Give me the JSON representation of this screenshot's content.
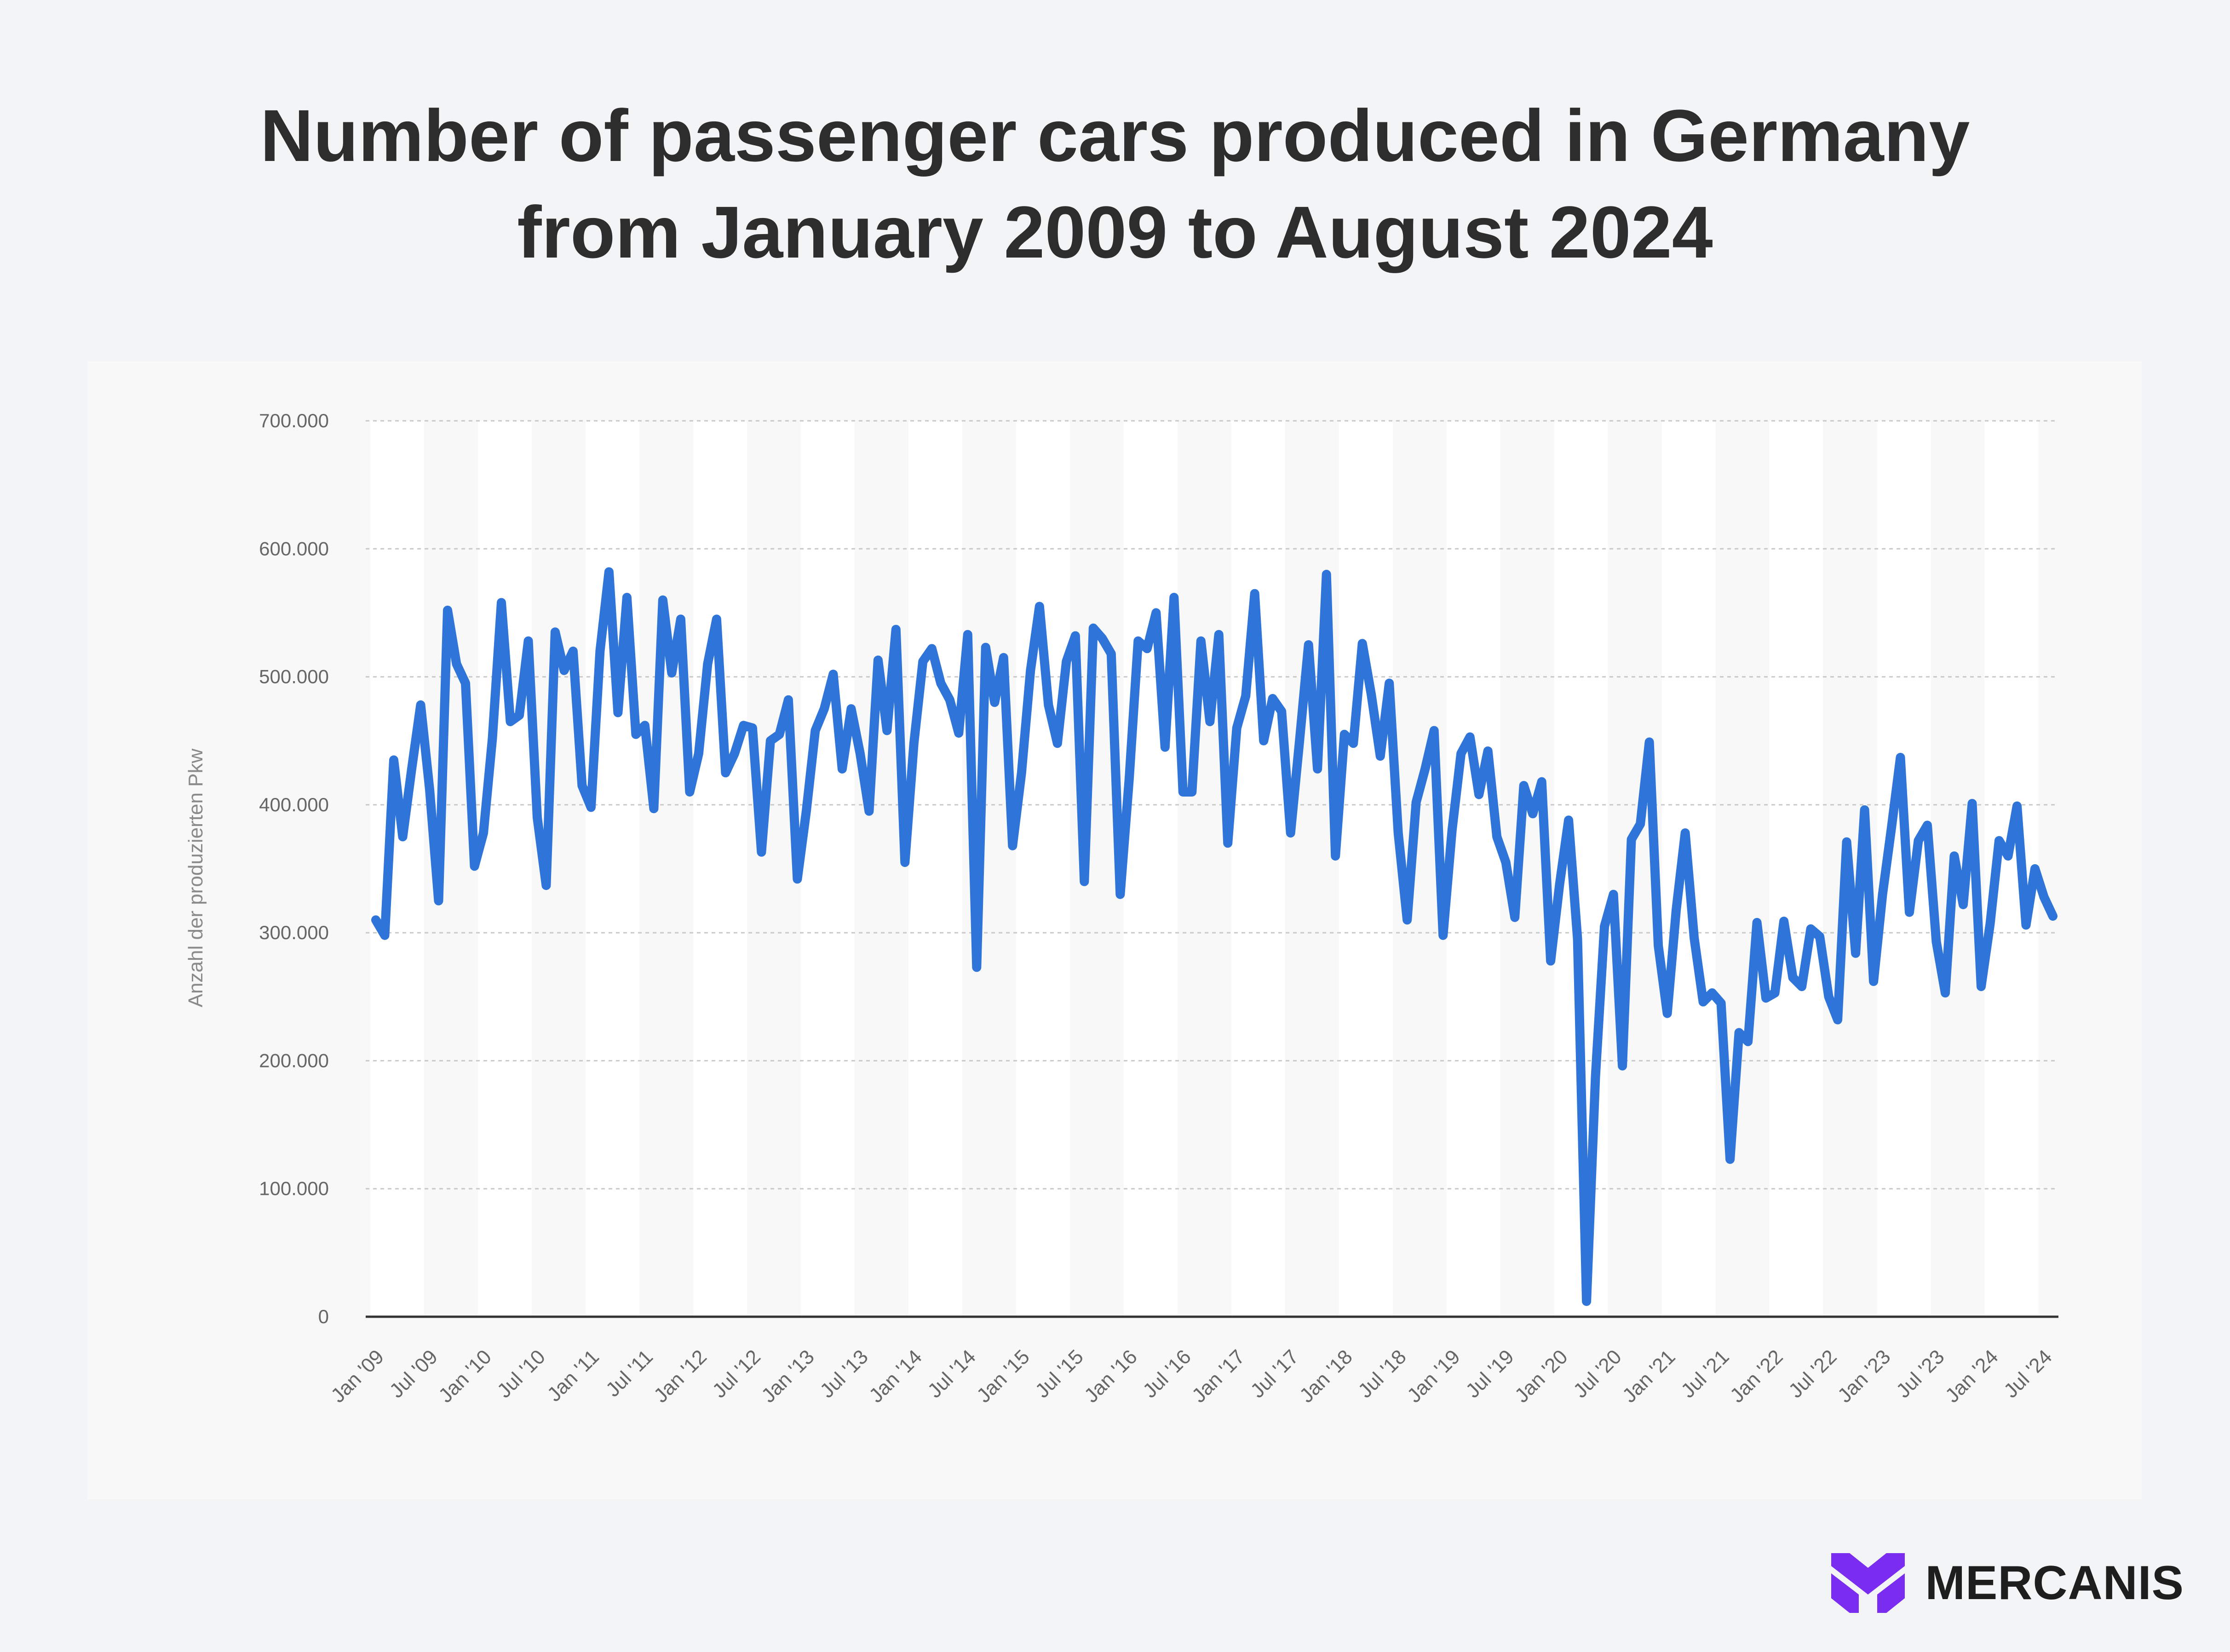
{
  "chart_data": {
    "type": "line",
    "title_lines": [
      "Number of passenger cars produced in Germany",
      "from January 2009 to August 2024"
    ],
    "ylabel": "Anzahl der produzierten Pkw",
    "xlabel": "",
    "ylim": [
      0,
      700000
    ],
    "y_ticks": [
      0,
      100000,
      200000,
      300000,
      400000,
      500000,
      600000,
      700000
    ],
    "y_tick_labels": [
      "0",
      "100.000",
      "200.000",
      "300.000",
      "400.000",
      "500.000",
      "600.000",
      "700.000"
    ],
    "x_tick_labels": [
      "Jan '09",
      "Jul '09",
      "Jan '10",
      "Jul '10",
      "Jan '11",
      "Jul '11",
      "Jan '12",
      "Jul '12",
      "Jan '13",
      "Jul '13",
      "Jan '14",
      "Jul '14",
      "Jan '15",
      "Jul '15",
      "Jan '16",
      "Jul '16",
      "Jan '17",
      "Jul '17",
      "Jan '18",
      "Jul '18",
      "Jan '19",
      "Jul '19",
      "Jan '20",
      "Jul '20",
      "Jan '21",
      "Jul '21",
      "Jan '22",
      "Jul '22",
      "Jan '23",
      "Jul '23",
      "Jan '24",
      "Jul '24"
    ],
    "grid": true,
    "series": [
      {
        "name": "Anzahl der produzierten Pkw",
        "color": "#2f74d8",
        "start": "Jan 2009",
        "frequency": "monthly",
        "values": [
          310000,
          298000,
          435000,
          375000,
          428000,
          478000,
          412000,
          325000,
          552000,
          510000,
          495000,
          352000,
          378000,
          452000,
          558000,
          465000,
          470000,
          528000,
          390000,
          337000,
          535000,
          505000,
          520000,
          415000,
          398000,
          520000,
          582000,
          472000,
          562000,
          455000,
          462000,
          397000,
          560000,
          503000,
          545000,
          410000,
          440000,
          510000,
          545000,
          425000,
          440000,
          462000,
          460000,
          363000,
          450000,
          455000,
          482000,
          342000,
          395000,
          458000,
          475000,
          502000,
          428000,
          475000,
          440000,
          395000,
          513000,
          458000,
          537000,
          355000,
          448000,
          512000,
          522000,
          495000,
          482000,
          456000,
          533000,
          273000,
          523000,
          480000,
          515000,
          368000,
          425000,
          505000,
          555000,
          478000,
          448000,
          512000,
          532000,
          340000,
          538000,
          530000,
          518000,
          330000,
          420000,
          528000,
          522000,
          550000,
          445000,
          562000,
          410000,
          410000,
          528000,
          465000,
          533000,
          370000,
          460000,
          485000,
          565000,
          450000,
          483000,
          473000,
          378000,
          450000,
          525000,
          428000,
          580000,
          360000,
          455000,
          448000,
          526000,
          486000,
          438000,
          495000,
          378000,
          310000,
          402000,
          428000,
          458000,
          298000,
          380000,
          440000,
          453000,
          408000,
          442000,
          375000,
          355000,
          312000,
          415000,
          393000,
          418000,
          278000,
          338000,
          388000,
          295000,
          12000,
          188000,
          305000,
          330000,
          196000,
          373000,
          385000,
          449000,
          290000,
          237000,
          318000,
          378000,
          296000,
          246000,
          253000,
          245000,
          123000,
          222000,
          215000,
          308000,
          249000,
          253000,
          309000,
          265000,
          258000,
          303000,
          297000,
          250000,
          232000,
          371000,
          284000,
          396000,
          262000,
          330000,
          382000,
          437000,
          316000,
          372000,
          384000,
          293000,
          253000,
          360000,
          322000,
          401000,
          258000,
          307000,
          372000,
          360000,
          399000,
          306000,
          350000,
          328000,
          313000
        ]
      }
    ]
  },
  "logo": {
    "name": "MERCANIS",
    "color": "#7a2cf0"
  }
}
